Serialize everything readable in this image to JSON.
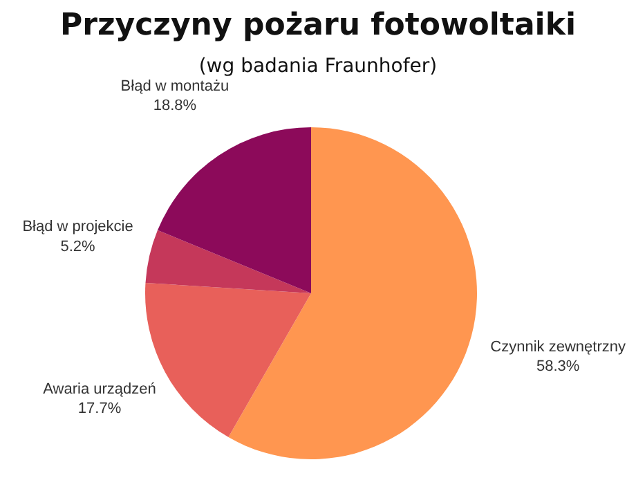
{
  "chart_data": {
    "type": "pie",
    "title": "Przyczyny pożaru fotowoltaiki",
    "subtitle": "(wg badania Fraunhofer)",
    "categories": [
      "Czynnik zewnętrzny",
      "Awaria urządzeń",
      "Błąd w projekcie",
      "Błąd w montażu"
    ],
    "values": [
      58.3,
      17.7,
      5.2,
      18.8
    ],
    "value_labels": [
      "58.3%",
      "17.7%",
      "5.2%",
      "18.8%"
    ],
    "colors": [
      "#ff9650",
      "#e8605a",
      "#c5385a",
      "#8c0a5a"
    ]
  }
}
